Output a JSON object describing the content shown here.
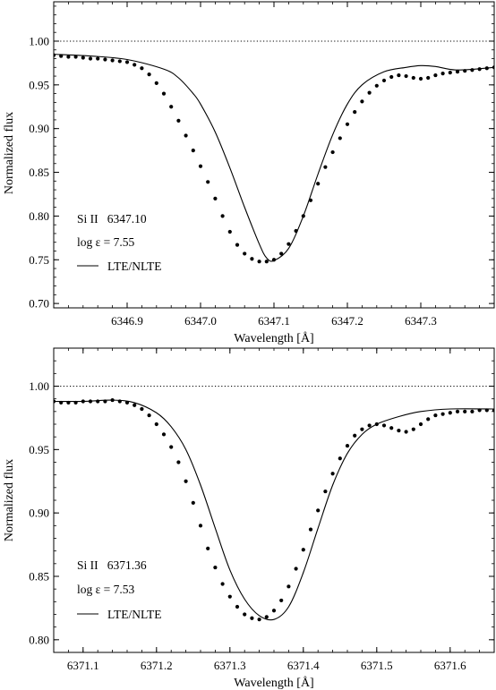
{
  "chart_data": [
    {
      "type": "line",
      "xlabel": "Wavelength [Å]",
      "ylabel": "Normalized flux",
      "xlim": [
        6346.8,
        6347.4
      ],
      "ylim": [
        0.695,
        1.045
      ],
      "xticks": [
        6346.9,
        6347.0,
        6347.1,
        6347.2,
        6347.3
      ],
      "xtick_labels": [
        "6346.9",
        "6347.0",
        "6347.1",
        "6347.2",
        "6347.3"
      ],
      "yticks": [
        0.7,
        0.75,
        0.8,
        0.85,
        0.9,
        0.95,
        1.0
      ],
      "ytick_labels": [
        "0.70",
        "0.75",
        "0.80",
        "0.85",
        "0.90",
        "0.95",
        "1.00"
      ],
      "reference_line": {
        "y": 1.0,
        "style": "dotted"
      },
      "annotations": {
        "line_id": "Si II   6347.10",
        "abundance": "log ε = 7.55",
        "legend_label": "LTE/NLTE"
      },
      "series": [
        {
          "style": "line",
          "x": [
            6346.8,
            6346.85,
            6346.9,
            6346.95,
            6346.97,
            6346.99,
            6347.0,
            6347.02,
            6347.04,
            6347.06,
            6347.08,
            6347.09,
            6347.1,
            6347.12,
            6347.14,
            6347.16,
            6347.18,
            6347.2,
            6347.22,
            6347.25,
            6347.28,
            6347.3,
            6347.32,
            6347.35,
            6347.4
          ],
          "y": [
            0.985,
            0.983,
            0.979,
            0.968,
            0.958,
            0.94,
            0.928,
            0.896,
            0.855,
            0.81,
            0.768,
            0.752,
            0.749,
            0.763,
            0.8,
            0.848,
            0.893,
            0.928,
            0.95,
            0.965,
            0.97,
            0.972,
            0.971,
            0.967,
            0.97
          ]
        },
        {
          "style": "points",
          "x": [
            6346.8,
            6346.81,
            6346.82,
            6346.83,
            6346.84,
            6346.85,
            6346.86,
            6346.87,
            6346.88,
            6346.89,
            6346.9,
            6346.91,
            6346.92,
            6346.93,
            6346.94,
            6346.95,
            6346.96,
            6346.97,
            6346.98,
            6346.99,
            6347.0,
            6347.01,
            6347.02,
            6347.03,
            6347.04,
            6347.05,
            6347.06,
            6347.07,
            6347.08,
            6347.09,
            6347.1,
            6347.11,
            6347.12,
            6347.13,
            6347.14,
            6347.15,
            6347.16,
            6347.17,
            6347.18,
            6347.19,
            6347.2,
            6347.21,
            6347.22,
            6347.23,
            6347.24,
            6347.25,
            6347.26,
            6347.27,
            6347.28,
            6347.29,
            6347.3,
            6347.31,
            6347.32,
            6347.33,
            6347.34,
            6347.35,
            6347.36,
            6347.37,
            6347.38,
            6347.39,
            6347.4
          ],
          "y": [
            0.984,
            0.983,
            0.982,
            0.982,
            0.981,
            0.98,
            0.98,
            0.979,
            0.978,
            0.977,
            0.976,
            0.973,
            0.969,
            0.962,
            0.952,
            0.94,
            0.925,
            0.909,
            0.892,
            0.875,
            0.857,
            0.839,
            0.82,
            0.8,
            0.782,
            0.767,
            0.757,
            0.751,
            0.748,
            0.748,
            0.75,
            0.757,
            0.768,
            0.783,
            0.8,
            0.818,
            0.837,
            0.856,
            0.873,
            0.889,
            0.905,
            0.919,
            0.931,
            0.941,
            0.949,
            0.955,
            0.959,
            0.961,
            0.96,
            0.958,
            0.957,
            0.958,
            0.961,
            0.963,
            0.964,
            0.965,
            0.966,
            0.967,
            0.968,
            0.969,
            0.97
          ]
        }
      ]
    },
    {
      "type": "line",
      "xlabel": "Wavelength [Å]",
      "ylabel": "Normalized flux",
      "xlim": [
        6371.06,
        6371.66
      ],
      "ylim": [
        0.79,
        1.03
      ],
      "xticks": [
        6371.1,
        6371.2,
        6371.3,
        6371.4,
        6371.5,
        6371.6
      ],
      "xtick_labels": [
        "6371.1",
        "6371.2",
        "6371.3",
        "6371.4",
        "6371.5",
        "6371.6"
      ],
      "yticks": [
        0.8,
        0.85,
        0.9,
        0.95,
        1.0
      ],
      "ytick_labels": [
        "0.80",
        "0.85",
        "0.90",
        "0.95",
        "1.00"
      ],
      "reference_line": {
        "y": 1.0,
        "style": "dotted"
      },
      "annotations": {
        "line_id": "Si II   6371.36",
        "abundance": "log ε = 7.53",
        "legend_label": "LTE/NLTE"
      },
      "series": [
        {
          "style": "line",
          "x": [
            6371.06,
            6371.1,
            6371.14,
            6371.17,
            6371.2,
            6371.22,
            6371.24,
            6371.26,
            6371.28,
            6371.3,
            6371.32,
            6371.34,
            6371.36,
            6371.38,
            6371.4,
            6371.42,
            6371.44,
            6371.46,
            6371.48,
            6371.5,
            6371.53,
            6371.56,
            6371.6,
            6371.66
          ],
          "y": [
            0.988,
            0.988,
            0.989,
            0.987,
            0.979,
            0.968,
            0.95,
            0.922,
            0.888,
            0.855,
            0.832,
            0.819,
            0.816,
            0.826,
            0.853,
            0.888,
            0.922,
            0.947,
            0.962,
            0.97,
            0.976,
            0.98,
            0.982,
            0.982
          ]
        },
        {
          "style": "points",
          "x": [
            6371.06,
            6371.07,
            6371.08,
            6371.09,
            6371.1,
            6371.11,
            6371.12,
            6371.13,
            6371.14,
            6371.15,
            6371.16,
            6371.17,
            6371.18,
            6371.19,
            6371.2,
            6371.21,
            6371.22,
            6371.23,
            6371.24,
            6371.25,
            6371.26,
            6371.27,
            6371.28,
            6371.29,
            6371.3,
            6371.31,
            6371.32,
            6371.33,
            6371.34,
            6371.35,
            6371.36,
            6371.37,
            6371.38,
            6371.39,
            6371.4,
            6371.41,
            6371.42,
            6371.43,
            6371.44,
            6371.45,
            6371.46,
            6371.47,
            6371.48,
            6371.49,
            6371.5,
            6371.51,
            6371.52,
            6371.53,
            6371.54,
            6371.55,
            6371.56,
            6371.57,
            6371.58,
            6371.59,
            6371.6,
            6371.61,
            6371.62,
            6371.63,
            6371.64,
            6371.65,
            6371.66
          ],
          "y": [
            0.988,
            0.987,
            0.987,
            0.987,
            0.988,
            0.988,
            0.988,
            0.988,
            0.989,
            0.988,
            0.987,
            0.985,
            0.982,
            0.977,
            0.97,
            0.962,
            0.952,
            0.94,
            0.925,
            0.908,
            0.89,
            0.872,
            0.857,
            0.844,
            0.834,
            0.826,
            0.82,
            0.817,
            0.816,
            0.818,
            0.823,
            0.831,
            0.842,
            0.856,
            0.871,
            0.887,
            0.902,
            0.917,
            0.931,
            0.943,
            0.953,
            0.961,
            0.966,
            0.969,
            0.97,
            0.969,
            0.967,
            0.965,
            0.964,
            0.966,
            0.97,
            0.974,
            0.977,
            0.978,
            0.979,
            0.98,
            0.98,
            0.98,
            0.981,
            0.981,
            0.981
          ]
        }
      ]
    }
  ]
}
